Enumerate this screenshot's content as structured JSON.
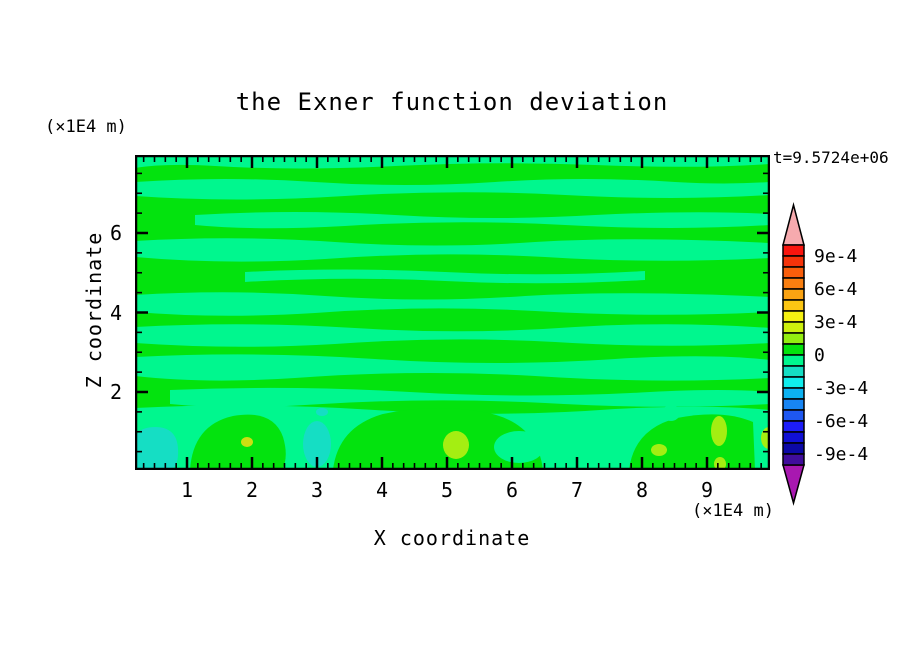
{
  "title": "the Exner function deviation",
  "timestamp_label": "t=9.5724e+06",
  "axes": {
    "x": {
      "label": "X coordinate",
      "unit_label": "(×1E4 m)",
      "ticks": [
        "1",
        "2",
        "3",
        "4",
        "5",
        "6",
        "7",
        "8",
        "9"
      ]
    },
    "y": {
      "label": "Z coordinate",
      "unit_label": "(×1E4 m)",
      "ticks": [
        "6",
        "4",
        "2"
      ]
    }
  },
  "colorbar": {
    "labels": [
      "9e-4",
      "6e-4",
      "3e-4",
      "0",
      "-3e-4",
      "-6e-4",
      "-9e-4"
    ],
    "over_color": "#f6aaae",
    "under_color": "#a818b0",
    "box_colors": [
      "#f9150e",
      "#f6330a",
      "#fa5e0b",
      "#fa7f10",
      "#fba312",
      "#fcc613",
      "#f6f112",
      "#cdf00d",
      "#93ee11",
      "#03e30e",
      "#00f78e",
      "#15dec4",
      "#10eded",
      "#0cb2f2",
      "#1785f4",
      "#1e57f1",
      "#1d1df8",
      "#1010d4",
      "#0c09a6",
      "#400d9b"
    ]
  },
  "field": {
    "base": "#03e30e",
    "band": "#00f78e",
    "turquoise": "#15dec4",
    "chartreuse": "#a4ee12",
    "olive": "#ccdf12",
    "frame": "#000000"
  },
  "chart_data": {
    "type": "heatmap",
    "title": "the Exner function deviation",
    "xlabel": "X coordinate (×1E4 m)",
    "ylabel": "Z coordinate (×1E4 m)",
    "time_label": "t=9.5724e+06",
    "xlim": [
      0.2,
      9.95
    ],
    "ylim": [
      0,
      8
    ],
    "x_ticks": [
      1,
      2,
      3,
      4,
      5,
      6,
      7,
      8,
      9
    ],
    "y_ticks": [
      2,
      4,
      6
    ],
    "contour_interval": 0.0001,
    "levels": [
      -0.001,
      -0.0009,
      -0.0008,
      -0.0007,
      -0.0006,
      -0.0005,
      -0.0004,
      -0.0003,
      -0.0002,
      -0.0001,
      0,
      0.0001,
      0.0002,
      0.0003,
      0.0004,
      0.0005,
      0.0006,
      0.0007,
      0.0008,
      0.0009,
      0.001
    ],
    "labeled_levels": [
      "9e-4",
      "6e-4",
      "3e-4",
      "0",
      "-3e-4",
      "-6e-4",
      "-9e-4"
    ],
    "palette_top_to_bottom": [
      "#f9150e",
      "#f6330a",
      "#fa5e0b",
      "#fa7f10",
      "#fba312",
      "#fcc613",
      "#f6f112",
      "#cdf00d",
      "#93ee11",
      "#03e30e",
      "#00f78e",
      "#15dec4",
      "#10eded",
      "#0cb2f2",
      "#1785f4",
      "#1e57f1",
      "#1d1df8",
      "#1010d4",
      "#0c09a6",
      "#400d9b"
    ],
    "over_color": "#f6aaae",
    "under_color": "#a818b0",
    "legend_position": "right",
    "grid": false,
    "value_summary": "field mostly within -1e-4..1e-4 (alternating green / spring-green horizontal streaks); near-surface patches reach -2e-4 (turquoise) and +3e-4 (yellow-green)"
  }
}
